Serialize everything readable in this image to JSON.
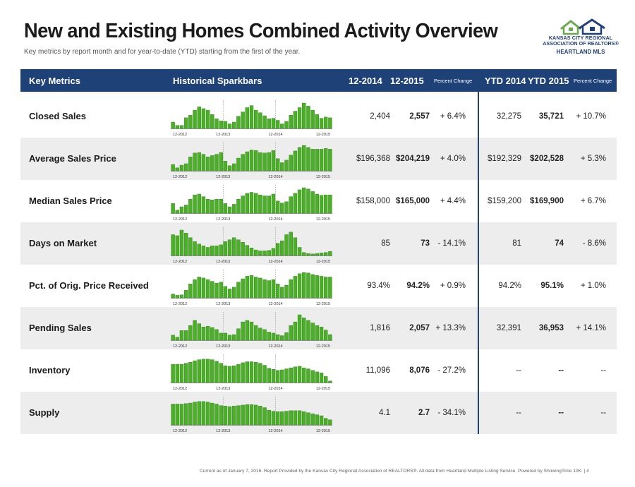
{
  "page": {
    "title": "New and Existing Homes Combined Activity Overview",
    "subtitle": "Key metrics by report month and for year-to-date (YTD) starting from the first of the year.",
    "footer": "Current as of January 7, 2016. Report Provided by the Kansas City Regional Association of REALTORS®. All data from Heartland Multiple Listing Service. Powered by ShowingTime 10K.  |  4"
  },
  "logo": {
    "line1": "KANSAS CITY REGIONAL",
    "line2": "ASSOCIATION OF REALTORS®",
    "line3": "HEARTLAND MLS",
    "colors": {
      "house_left": "#6aa84f",
      "house_right": "#1f3f7a"
    }
  },
  "header": {
    "key_metrics": "Key Metrics",
    "sparkbars": "Historical Sparkbars",
    "col1": "12-2014",
    "col2": "12-2015",
    "pct1": "Percent Change",
    "ytd1": "YTD 2014",
    "ytd2": "YTD 2015",
    "pct2": "Percent Change"
  },
  "colors": {
    "header_bg": "#1e4178",
    "bar": "#4caf28",
    "bar_edge": "#2e7d16"
  },
  "spark_x_labels": [
    "12-2012",
    "12-2013",
    "12-2014",
    "12-2015"
  ],
  "chart_data": {
    "type": "bar",
    "x_labels": [
      "12-2012",
      "12-2013",
      "12-2014",
      "12-2015"
    ],
    "note_values_relative": true,
    "metrics": [
      {
        "name": "Closed Sales",
        "values": [
          0.25,
          0.12,
          0.12,
          0.42,
          0.52,
          0.72,
          0.85,
          0.78,
          0.72,
          0.55,
          0.38,
          0.3,
          0.28,
          0.18,
          0.25,
          0.48,
          0.65,
          0.82,
          0.9,
          0.72,
          0.62,
          0.5,
          0.38,
          0.4,
          0.32,
          0.18,
          0.28,
          0.52,
          0.68,
          0.82,
          1.0,
          0.88,
          0.72,
          0.55,
          0.4,
          0.45,
          0.42
        ],
        "v2014": "2,404",
        "v2015": "2,557",
        "pct": "+ 6.4%",
        "ytd2014": "32,275",
        "ytd2015": "35,721",
        "ytd_pct": "+ 10.7%"
      },
      {
        "name": "Average Sales Price",
        "values": [
          0.25,
          0.12,
          0.22,
          0.28,
          0.55,
          0.7,
          0.72,
          0.65,
          0.55,
          0.6,
          0.65,
          0.72,
          0.38,
          0.2,
          0.28,
          0.5,
          0.65,
          0.75,
          0.82,
          0.8,
          0.72,
          0.7,
          0.72,
          0.8,
          0.48,
          0.32,
          0.42,
          0.62,
          0.78,
          0.92,
          1.0,
          0.92,
          0.85,
          0.85,
          0.85,
          0.88,
          0.85
        ],
        "v2014": "$196,368",
        "v2015": "$204,219",
        "pct": "+ 4.0%",
        "ytd2014": "$192,329",
        "ytd2015": "$202,528",
        "ytd_pct": "+ 5.3%"
      },
      {
        "name": "Median Sales Price",
        "values": [
          0.38,
          0.12,
          0.25,
          0.32,
          0.55,
          0.72,
          0.75,
          0.65,
          0.55,
          0.52,
          0.55,
          0.55,
          0.38,
          0.25,
          0.35,
          0.55,
          0.68,
          0.78,
          0.82,
          0.78,
          0.72,
          0.68,
          0.68,
          0.75,
          0.48,
          0.4,
          0.45,
          0.65,
          0.78,
          0.92,
          1.0,
          0.95,
          0.85,
          0.75,
          0.7,
          0.72,
          0.72
        ],
        "v2014": "$158,000",
        "v2015": "$165,000",
        "pct": "+ 4.4%",
        "ytd2014": "$159,200",
        "ytd2015": "$169,900",
        "ytd_pct": "+ 6.7%"
      },
      {
        "name": "Days on Market",
        "values": [
          0.82,
          0.78,
          1.0,
          0.88,
          0.7,
          0.55,
          0.45,
          0.38,
          0.32,
          0.38,
          0.38,
          0.42,
          0.55,
          0.62,
          0.7,
          0.62,
          0.52,
          0.4,
          0.3,
          0.22,
          0.18,
          0.18,
          0.2,
          0.28,
          0.48,
          0.58,
          0.82,
          0.92,
          0.7,
          0.32,
          0.12,
          0.08,
          0.06,
          0.08,
          0.1,
          0.12,
          0.16
        ],
        "v2014": "85",
        "v2015": "73",
        "pct": "- 14.1%",
        "ytd2014": "81",
        "ytd2015": "74",
        "ytd_pct": "- 8.6%"
      },
      {
        "name": "Pct. of Orig. Price Received",
        "values": [
          0.15,
          0.1,
          0.12,
          0.3,
          0.55,
          0.72,
          0.82,
          0.78,
          0.72,
          0.65,
          0.58,
          0.62,
          0.45,
          0.35,
          0.42,
          0.62,
          0.75,
          0.85,
          0.88,
          0.82,
          0.78,
          0.72,
          0.68,
          0.72,
          0.55,
          0.42,
          0.5,
          0.72,
          0.85,
          0.95,
          1.0,
          0.98,
          0.92,
          0.88,
          0.85,
          0.82,
          0.82
        ],
        "v2014": "93.4%",
        "v2015": "94.2%",
        "pct": "+ 0.9%",
        "ytd2014": "94.2%",
        "ytd2015": "95.1%",
        "ytd_pct": "+ 1.0%"
      },
      {
        "name": "Pending Sales",
        "values": [
          0.2,
          0.12,
          0.38,
          0.38,
          0.58,
          0.78,
          0.65,
          0.52,
          0.55,
          0.5,
          0.42,
          0.28,
          0.28,
          0.2,
          0.22,
          0.45,
          0.72,
          0.78,
          0.72,
          0.58,
          0.48,
          0.42,
          0.32,
          0.28,
          0.22,
          0.18,
          0.3,
          0.58,
          0.72,
          1.0,
          0.88,
          0.78,
          0.68,
          0.58,
          0.52,
          0.4,
          0.22
        ],
        "v2014": "1,816",
        "v2015": "2,057",
        "pct": "+ 13.3%",
        "ytd2014": "32,391",
        "ytd2015": "36,953",
        "ytd_pct": "+ 14.1%"
      },
      {
        "name": "Inventory",
        "values": [
          0.72,
          0.72,
          0.72,
          0.76,
          0.8,
          0.86,
          0.9,
          0.92,
          0.92,
          0.9,
          0.84,
          0.76,
          0.66,
          0.64,
          0.66,
          0.72,
          0.78,
          0.82,
          0.82,
          0.8,
          0.76,
          0.68,
          0.56,
          0.52,
          0.48,
          0.5,
          0.54,
          0.58,
          0.62,
          0.64,
          0.58,
          0.54,
          0.48,
          0.42,
          0.38,
          0.24,
          0.06
        ],
        "v2014": "11,096",
        "v2015": "8,076",
        "pct": "- 27.2%",
        "ytd2014": "--",
        "ytd2015": "--",
        "ytd_pct": "--"
      },
      {
        "name": "Supply",
        "values": [
          0.82,
          0.82,
          0.82,
          0.84,
          0.86,
          0.9,
          0.92,
          0.92,
          0.9,
          0.86,
          0.82,
          0.76,
          0.74,
          0.72,
          0.74,
          0.76,
          0.78,
          0.8,
          0.8,
          0.78,
          0.74,
          0.68,
          0.58,
          0.54,
          0.52,
          0.52,
          0.54,
          0.56,
          0.56,
          0.56,
          0.52,
          0.48,
          0.44,
          0.4,
          0.36,
          0.26,
          0.2
        ],
        "v2014": "4.1",
        "v2015": "2.7",
        "pct": "- 34.1%",
        "ytd2014": "--",
        "ytd2015": "--",
        "ytd_pct": "--"
      }
    ]
  }
}
